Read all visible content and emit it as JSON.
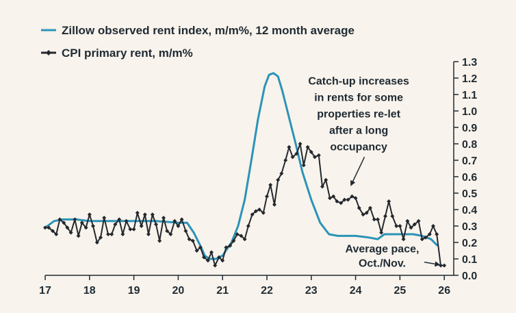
{
  "chart_data": {
    "type": "line",
    "title": "",
    "xlabel": "",
    "ylabel": "",
    "xlim": [
      17,
      26.2
    ],
    "ylim": [
      0,
      1.3
    ],
    "x_ticks": [
      "17",
      "18",
      "19",
      "20",
      "21",
      "22",
      "23",
      "24",
      "25",
      "26"
    ],
    "x_tick_values": [
      17,
      18,
      19,
      20,
      21,
      22,
      23,
      24,
      25,
      26
    ],
    "y_ticks": [
      "0.0",
      "0.1",
      "0.2",
      "0.3",
      "0.4",
      "0.5",
      "0.6",
      "0.7",
      "0.8",
      "0.9",
      "1.0",
      "1.1",
      "1.2",
      "1.3"
    ],
    "y_tick_values": [
      0,
      0.1,
      0.2,
      0.3,
      0.4,
      0.5,
      0.6,
      0.7,
      0.8,
      0.9,
      1.0,
      1.1,
      1.2,
      1.3
    ],
    "y_axis_side": "right",
    "grid": false,
    "legend_position": "top-left",
    "series": [
      {
        "name": "Zillow observed rent index, m/m%, 12 month average",
        "color": "#2a93b8",
        "marker": "none",
        "points": [
          [
            17.0,
            0.29
          ],
          [
            17.2,
            0.33
          ],
          [
            17.4,
            0.34
          ],
          [
            17.7,
            0.34
          ],
          [
            18.0,
            0.33
          ],
          [
            18.5,
            0.33
          ],
          [
            19.0,
            0.33
          ],
          [
            19.5,
            0.33
          ],
          [
            20.0,
            0.32
          ],
          [
            20.2,
            0.32
          ],
          [
            20.35,
            0.26
          ],
          [
            20.5,
            0.18
          ],
          [
            20.6,
            0.12
          ],
          [
            20.7,
            0.1
          ],
          [
            20.85,
            0.1
          ],
          [
            21.0,
            0.12
          ],
          [
            21.2,
            0.2
          ],
          [
            21.35,
            0.3
          ],
          [
            21.5,
            0.46
          ],
          [
            21.65,
            0.7
          ],
          [
            21.8,
            0.95
          ],
          [
            21.95,
            1.15
          ],
          [
            22.05,
            1.22
          ],
          [
            22.15,
            1.23
          ],
          [
            22.25,
            1.21
          ],
          [
            22.35,
            1.12
          ],
          [
            22.5,
            0.96
          ],
          [
            22.65,
            0.8
          ],
          [
            22.8,
            0.63
          ],
          [
            23.0,
            0.46
          ],
          [
            23.2,
            0.32
          ],
          [
            23.4,
            0.25
          ],
          [
            23.6,
            0.24
          ],
          [
            24.0,
            0.24
          ],
          [
            24.3,
            0.23
          ],
          [
            24.5,
            0.22
          ],
          [
            24.65,
            0.25
          ],
          [
            25.0,
            0.25
          ],
          [
            25.3,
            0.25
          ],
          [
            25.5,
            0.24
          ],
          [
            25.7,
            0.22
          ],
          [
            25.85,
            0.18
          ]
        ]
      },
      {
        "name": "CPI primary rent, m/m%",
        "color": "#24282d",
        "marker": "diamond",
        "points": [
          [
            17.0,
            0.29
          ],
          [
            17.08,
            0.29
          ],
          [
            17.17,
            0.27
          ],
          [
            17.25,
            0.25
          ],
          [
            17.33,
            0.34
          ],
          [
            17.42,
            0.32
          ],
          [
            17.5,
            0.29
          ],
          [
            17.58,
            0.26
          ],
          [
            17.67,
            0.34
          ],
          [
            17.75,
            0.24
          ],
          [
            17.83,
            0.32
          ],
          [
            17.92,
            0.29
          ],
          [
            18.0,
            0.37
          ],
          [
            18.08,
            0.3
          ],
          [
            18.17,
            0.2
          ],
          [
            18.25,
            0.23
          ],
          [
            18.33,
            0.35
          ],
          [
            18.42,
            0.25
          ],
          [
            18.5,
            0.25
          ],
          [
            18.58,
            0.31
          ],
          [
            18.67,
            0.34
          ],
          [
            18.75,
            0.25
          ],
          [
            18.83,
            0.33
          ],
          [
            18.92,
            0.28
          ],
          [
            19.0,
            0.28
          ],
          [
            19.08,
            0.38
          ],
          [
            19.17,
            0.3
          ],
          [
            19.25,
            0.37
          ],
          [
            19.33,
            0.25
          ],
          [
            19.42,
            0.37
          ],
          [
            19.5,
            0.31
          ],
          [
            19.58,
            0.21
          ],
          [
            19.67,
            0.35
          ],
          [
            19.75,
            0.27
          ],
          [
            19.83,
            0.25
          ],
          [
            19.92,
            0.33
          ],
          [
            20.0,
            0.3
          ],
          [
            20.08,
            0.34
          ],
          [
            20.17,
            0.27
          ],
          [
            20.25,
            0.22
          ],
          [
            20.33,
            0.21
          ],
          [
            20.42,
            0.15
          ],
          [
            20.5,
            0.17
          ],
          [
            20.58,
            0.11
          ],
          [
            20.67,
            0.09
          ],
          [
            20.75,
            0.14
          ],
          [
            20.83,
            0.06
          ],
          [
            20.92,
            0.11
          ],
          [
            21.0,
            0.09
          ],
          [
            21.08,
            0.17
          ],
          [
            21.17,
            0.18
          ],
          [
            21.25,
            0.21
          ],
          [
            21.33,
            0.25
          ],
          [
            21.42,
            0.24
          ],
          [
            21.5,
            0.22
          ],
          [
            21.58,
            0.3
          ],
          [
            21.67,
            0.37
          ],
          [
            21.75,
            0.39
          ],
          [
            21.83,
            0.4
          ],
          [
            21.92,
            0.38
          ],
          [
            22.0,
            0.48
          ],
          [
            22.08,
            0.55
          ],
          [
            22.17,
            0.43
          ],
          [
            22.25,
            0.58
          ],
          [
            22.33,
            0.62
          ],
          [
            22.42,
            0.7
          ],
          [
            22.5,
            0.78
          ],
          [
            22.58,
            0.72
          ],
          [
            22.67,
            0.74
          ],
          [
            22.75,
            0.8
          ],
          [
            22.83,
            0.67
          ],
          [
            22.92,
            0.78
          ],
          [
            23.0,
            0.75
          ],
          [
            23.08,
            0.72
          ],
          [
            23.17,
            0.73
          ],
          [
            23.25,
            0.54
          ],
          [
            23.33,
            0.58
          ],
          [
            23.42,
            0.47
          ],
          [
            23.5,
            0.48
          ],
          [
            23.58,
            0.45
          ],
          [
            23.67,
            0.44
          ],
          [
            23.75,
            0.46
          ],
          [
            23.83,
            0.46
          ],
          [
            23.92,
            0.48
          ],
          [
            24.0,
            0.47
          ],
          [
            24.08,
            0.41
          ],
          [
            24.17,
            0.37
          ],
          [
            24.25,
            0.38
          ],
          [
            24.33,
            0.41
          ],
          [
            24.42,
            0.34
          ],
          [
            24.5,
            0.34
          ],
          [
            24.58,
            0.26
          ],
          [
            24.67,
            0.36
          ],
          [
            24.75,
            0.45
          ],
          [
            24.83,
            0.36
          ],
          [
            24.92,
            0.3
          ],
          [
            25.0,
            0.3
          ],
          [
            25.08,
            0.22
          ],
          [
            25.17,
            0.33
          ],
          [
            25.25,
            0.29
          ],
          [
            25.33,
            0.31
          ],
          [
            25.42,
            0.33
          ],
          [
            25.5,
            0.22
          ],
          [
            25.58,
            0.23
          ],
          [
            25.67,
            0.25
          ],
          [
            25.75,
            0.3
          ],
          [
            25.83,
            0.25
          ],
          [
            25.92,
            0.06
          ],
          [
            26.0,
            0.06
          ]
        ]
      }
    ],
    "annotations": [
      {
        "id": "catchup",
        "lines": [
          "Catch-up increases",
          "in rents for some",
          "properties re-let",
          "after a long",
          "occupancy"
        ],
        "text_anchor_at": [
          24.07,
          1.16
        ],
        "arrow_from": [
          24.2,
          0.72
        ],
        "arrow_to": [
          23.9,
          0.55
        ]
      },
      {
        "id": "avgpace",
        "lines": [
          "Average pace,",
          "Oct./Nov."
        ],
        "text_anchor_at": [
          24.6,
          0.14
        ],
        "arrow_from": [
          25.55,
          0.08
        ],
        "arrow_to": [
          25.88,
          0.065
        ]
      }
    ]
  }
}
